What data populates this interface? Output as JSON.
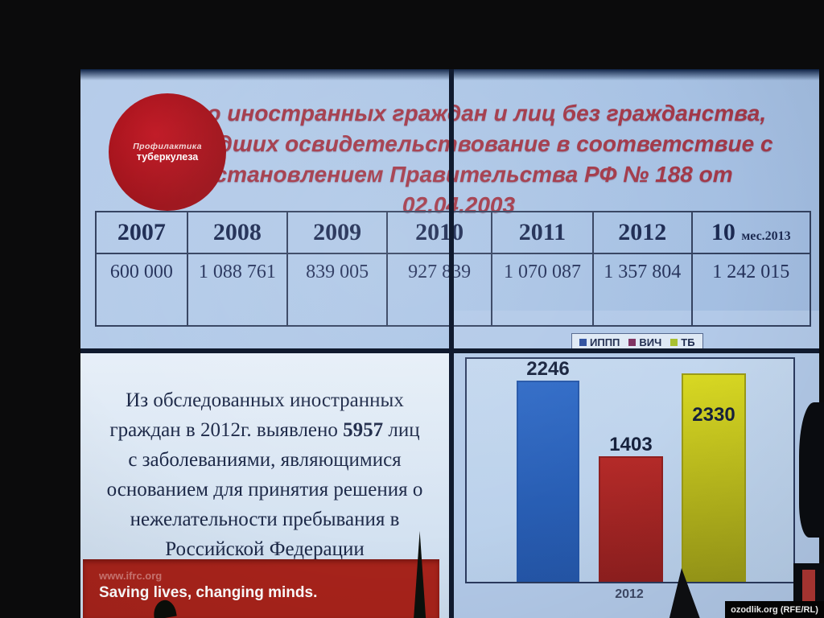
{
  "meta": {
    "watermark": "ozodlik.org (RFE/RL)"
  },
  "slide": {
    "logo": {
      "line1": "Профилактика",
      "line2": "туберкулеза"
    },
    "title_lines": [
      "Число  иностранных граждан и лиц без гражданства,",
      "прошедших освидетельствование  в соответствие  с",
      "Постановлением Правительства РФ № 188 от",
      "02.04.2003"
    ]
  },
  "table": {
    "headers": [
      "2007",
      "2008",
      "2009",
      "2010",
      "2011",
      "2012"
    ],
    "header7_main": "10",
    "header7_sub": "мес.2013",
    "values": [
      "600 000",
      "1 088 761",
      "839 005",
      "927 839",
      "1 070 087",
      "1 357 804",
      "1 242 015"
    ]
  },
  "body_text": {
    "line1": "Из обследованных иностранных",
    "line2_pre": "граждан в 2012г. выявлено  ",
    "line2_bold": "5957",
    "line2_post": " лиц",
    "line3": "с заболеваниями,  являющимися",
    "line4": "основанием для принятия решения о",
    "line5": "нежелательности пребывания в",
    "line6": "Российской Федерации"
  },
  "banner": {
    "url": "www.ifrc.org",
    "slogan": "Saving lives, changing minds."
  },
  "chart_data": {
    "type": "bar",
    "title": "",
    "categories": [
      "2012"
    ],
    "series": [
      {
        "name": "ИППП",
        "values": [
          2246
        ],
        "color": "#2f6ac6",
        "border_color": "#2456a8",
        "legend_color": "#2d4f9e",
        "label_position": "above"
      },
      {
        "name": "ВИЧ",
        "values": [
          1403
        ],
        "color": "#b42a28",
        "border_color": "#8f1f1f",
        "legend_color": "#7e3060",
        "label_position": "above"
      },
      {
        "name": "ТБ",
        "values": [
          2330
        ],
        "color": "#d8d822",
        "border_color": "#9a9a18",
        "legend_color": "#a8bf2e",
        "label_position": "inside"
      }
    ],
    "data_labels": [
      2246,
      1403,
      2330
    ],
    "xlabel": "",
    "ylabel": "",
    "ylim": [
      0,
      2400
    ],
    "grid": false,
    "legend_position": "top-right"
  }
}
